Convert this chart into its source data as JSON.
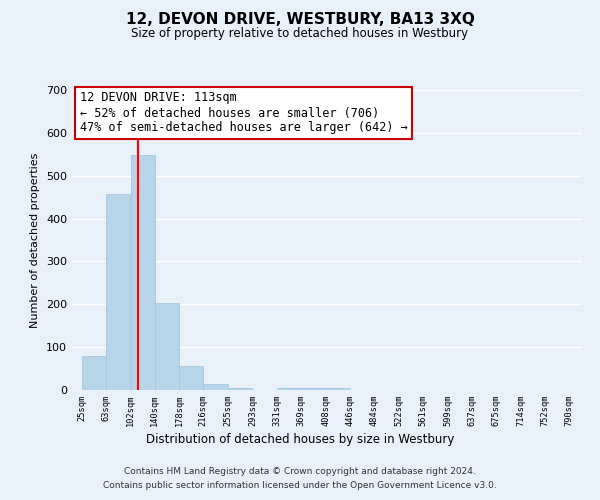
{
  "title": "12, DEVON DRIVE, WESTBURY, BA13 3XQ",
  "subtitle": "Size of property relative to detached houses in Westbury",
  "xlabel": "Distribution of detached houses by size in Westbury",
  "ylabel": "Number of detached properties",
  "bar_values": [
    80,
    457,
    548,
    202,
    57,
    15,
    5,
    0,
    5
  ],
  "bar_left_edges": [
    25,
    63,
    102,
    140,
    178,
    216,
    255,
    293,
    331
  ],
  "bar_widths": [
    38,
    39,
    38,
    38,
    38,
    39,
    38,
    38,
    115
  ],
  "x_tick_labels": [
    "25sqm",
    "63sqm",
    "102sqm",
    "140sqm",
    "178sqm",
    "216sqm",
    "255sqm",
    "293sqm",
    "331sqm",
    "369sqm",
    "408sqm",
    "446sqm",
    "484sqm",
    "522sqm",
    "561sqm",
    "599sqm",
    "637sqm",
    "675sqm",
    "714sqm",
    "752sqm",
    "790sqm"
  ],
  "x_tick_positions": [
    25,
    63,
    102,
    140,
    178,
    216,
    255,
    293,
    331,
    369,
    408,
    446,
    484,
    522,
    561,
    599,
    637,
    675,
    714,
    752,
    790
  ],
  "ylim": [
    0,
    700
  ],
  "bar_color": "#b8d4e8",
  "bar_edge_color": "#9ec4e0",
  "red_line_x": 113,
  "annotation_line1": "12 DEVON DRIVE: 113sqm",
  "annotation_line2": "← 52% of detached houses are smaller (706)",
  "annotation_line3": "47% of semi-detached houses are larger (642) →",
  "annotation_box_color": "white",
  "annotation_box_edge": "#cc0000",
  "footer_line1": "Contains HM Land Registry data © Crown copyright and database right 2024.",
  "footer_line2": "Contains public sector information licensed under the Open Government Licence v3.0.",
  "background_color": "#e8f0fa",
  "grid_color": "white",
  "yticks": [
    0,
    100,
    200,
    300,
    400,
    500,
    600,
    700
  ]
}
